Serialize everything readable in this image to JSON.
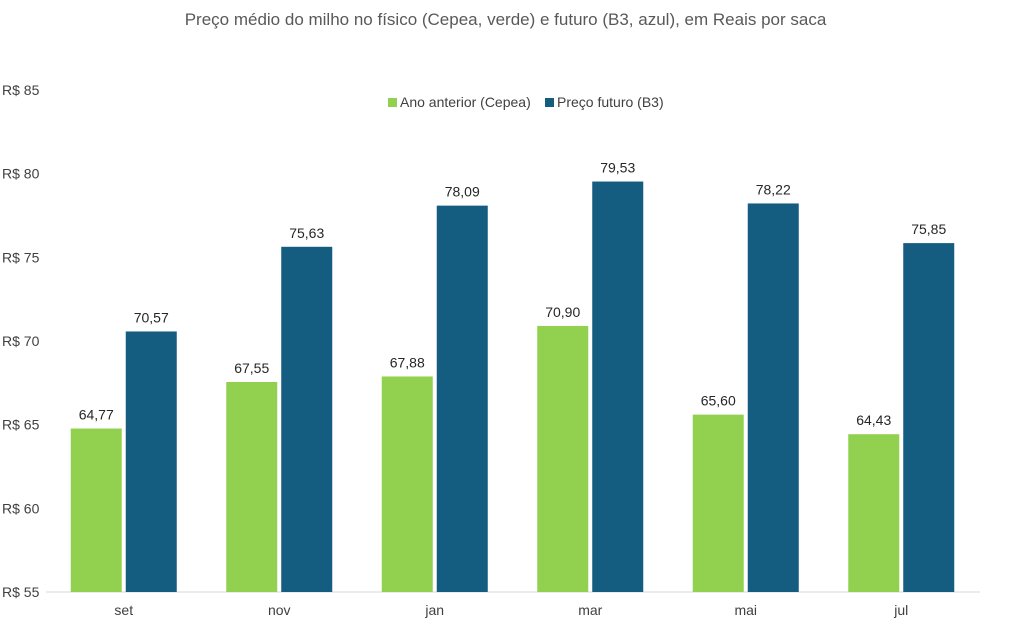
{
  "chart_data": {
    "type": "bar",
    "title": "Preço médio do milho no físico (Cepea, verde) e futuro (B3, azul), em Reais por saca",
    "categories": [
      "set",
      "nov",
      "jan",
      "mar",
      "mai",
      "jul"
    ],
    "series": [
      {
        "name": "Ano anterior (Cepea)",
        "color": "#92d050",
        "values": [
          64.77,
          67.55,
          67.88,
          70.9,
          65.6,
          64.43
        ],
        "labels": [
          "64,77",
          "67,55",
          "67,88",
          "70,90",
          "65,60",
          "64,43"
        ]
      },
      {
        "name": "Preço futuro (B3)",
        "color": "#145c80",
        "values": [
          70.57,
          75.63,
          78.09,
          79.53,
          78.22,
          75.85
        ],
        "labels": [
          "70,57",
          "75,63",
          "78,09",
          "79,53",
          "78,22",
          "75,85"
        ]
      }
    ],
    "ylim": [
      55,
      85
    ],
    "yticks": [
      55,
      60,
      65,
      70,
      75,
      80,
      85
    ],
    "ytick_labels": [
      "R$ 55",
      "R$ 60",
      "R$ 65",
      "R$ 70",
      "R$ 75",
      "R$ 80",
      "R$ 85"
    ],
    "grid": false,
    "legend": "top-center"
  }
}
